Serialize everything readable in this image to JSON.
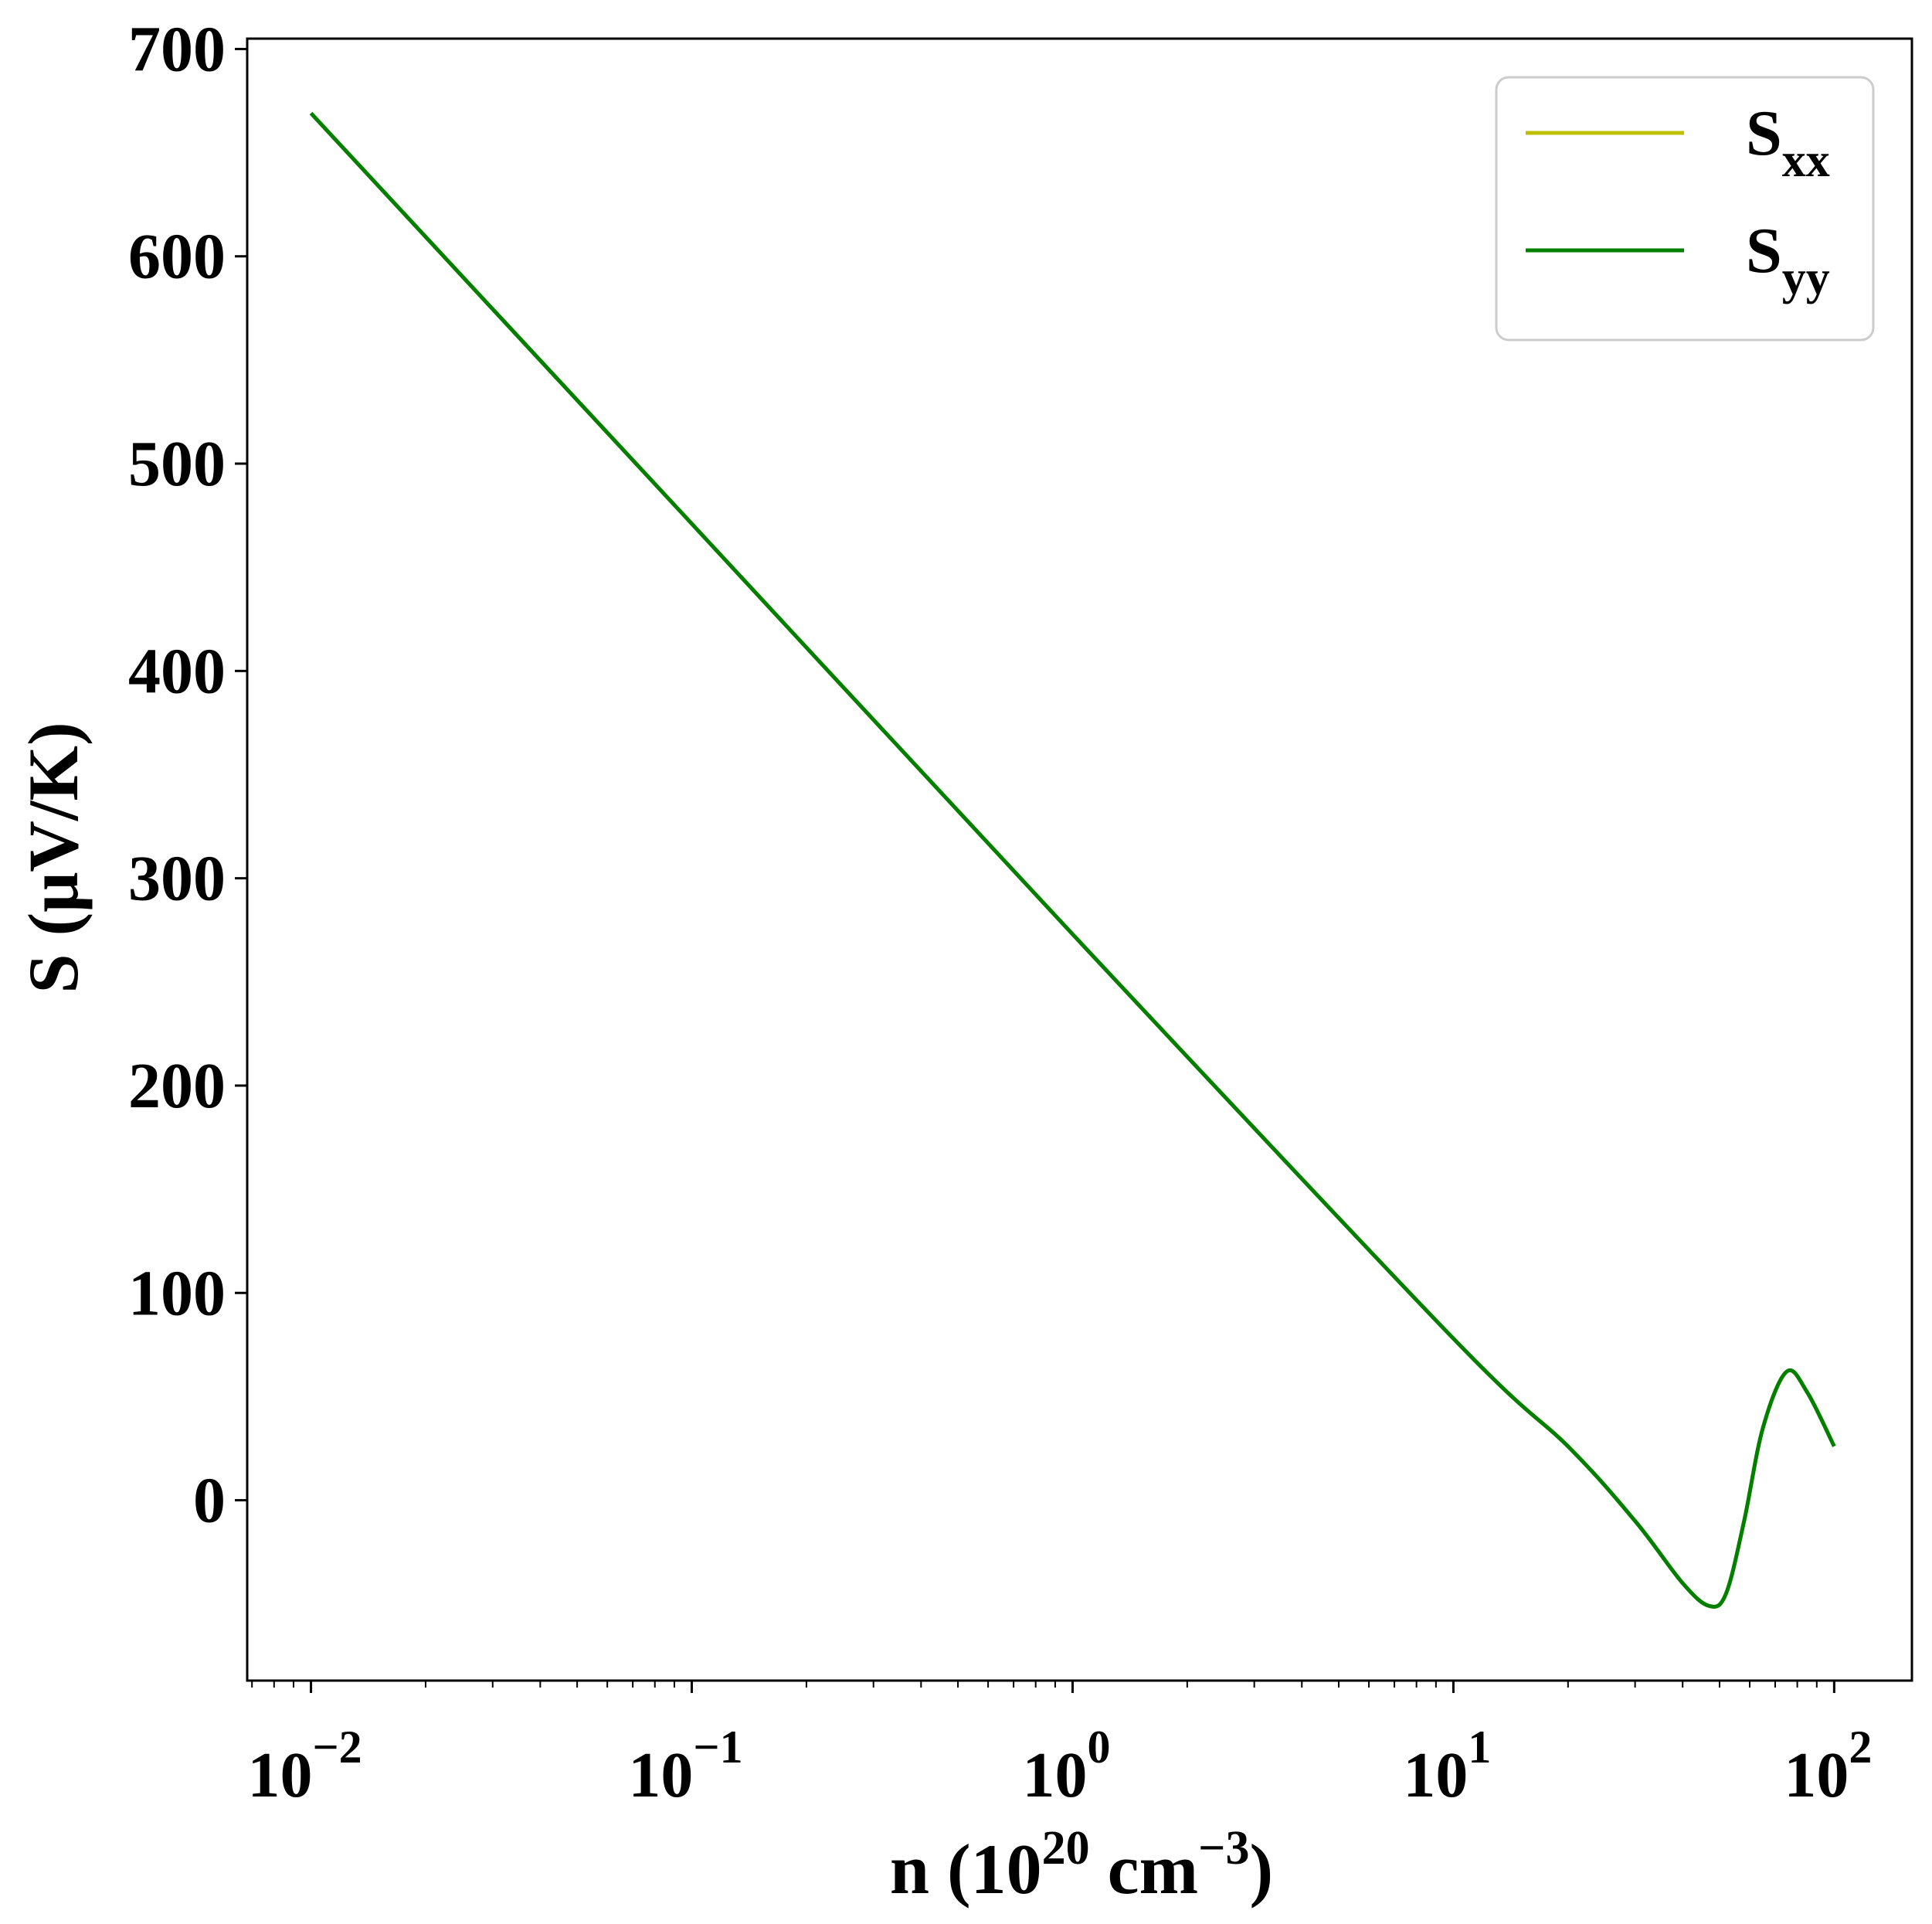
{
  "chart_data": {
    "type": "line",
    "title": "",
    "xlabel": {
      "prefix": "n (10",
      "sup1": "20",
      "middle": " cm",
      "sup2": "−3",
      "suffix": ")"
    },
    "ylabel": "S (μV/K)",
    "x_scale": "log",
    "xlim": [
      0.0068,
      160
    ],
    "ylim": [
      -87,
      705
    ],
    "x_ticks": [
      {
        "value": 0.01,
        "base": "10",
        "exp": "−2"
      },
      {
        "value": 0.1,
        "base": "10",
        "exp": "−1"
      },
      {
        "value": 1,
        "base": "10",
        "exp": "0"
      },
      {
        "value": 10,
        "base": "10",
        "exp": "1"
      },
      {
        "value": 100,
        "base": "10",
        "exp": "2"
      }
    ],
    "y_ticks": [
      0,
      100,
      200,
      300,
      400,
      500,
      600,
      700
    ],
    "grid": false,
    "legend_position": "top-right",
    "colors": {
      "S_xx": "#bfbf00",
      "S_yy": "#007f00"
    },
    "series": [
      {
        "name": "S_xx",
        "legend": {
          "main": "S",
          "sub": "xx"
        },
        "x": [
          0.01,
          0.1,
          1,
          10,
          20,
          30,
          40,
          47,
          52,
          58,
          65,
          75,
          85,
          100
        ],
        "y": [
          669,
          471,
          273,
          78,
          26,
          -10,
          -40,
          -51,
          -45,
          -10,
          35,
          62,
          52,
          26
        ]
      },
      {
        "name": "S_yy",
        "legend": {
          "main": "S",
          "sub": "yy"
        },
        "x": [
          0.01,
          0.1,
          1,
          10,
          20,
          30,
          40,
          47,
          52,
          58,
          65,
          75,
          85,
          100
        ],
        "y": [
          669,
          471,
          273,
          78,
          26,
          -10,
          -40,
          -51,
          -45,
          -10,
          35,
          62,
          52,
          26
        ]
      }
    ]
  }
}
